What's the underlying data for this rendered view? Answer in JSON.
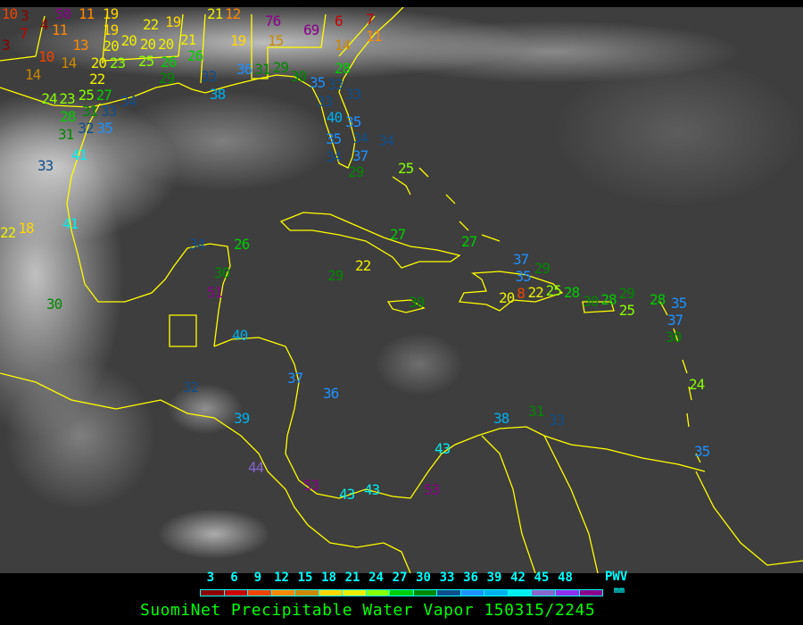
{
  "title": "SuomiNet Precipitable Water Vapor 150315/2245",
  "legend": {
    "unit": "PWV",
    "unit_sub": "mm",
    "ticks": [
      "3",
      "6",
      "9",
      "12",
      "15",
      "18",
      "21",
      "24",
      "27",
      "30",
      "33",
      "36",
      "39",
      "42",
      "45",
      "48"
    ],
    "colors": [
      "#8b0000",
      "#cc0000",
      "#ee4400",
      "#ff8800",
      "#cc8800",
      "#ffd700",
      "#eeee00",
      "#88ff00",
      "#00cc00",
      "#008800",
      "#104e8b",
      "#1e90ff",
      "#00b0ee",
      "#00eeee",
      "#8866cc",
      "#9030ee",
      "#8b008b"
    ],
    "label_color": "#00ffff",
    "title_color": "#00ff00"
  },
  "map": {
    "coastline_color": "#ffff00",
    "stations": [
      "10",
      "3",
      "50",
      "11",
      "19",
      "4",
      "7",
      "11",
      "3",
      "13",
      "19",
      "20",
      "20",
      "22",
      "19",
      "21",
      "12",
      "76",
      "6",
      "69",
      "7",
      "11",
      "10",
      "14",
      "14",
      "20",
      "23",
      "25",
      "26",
      "20",
      "20",
      "21",
      "26",
      "19",
      "15",
      "14",
      "22",
      "27",
      "29",
      "33",
      "36",
      "31",
      "29",
      "30",
      "28",
      "35",
      "33",
      "33",
      "33",
      "38",
      "34",
      "33",
      "24",
      "23",
      "25",
      "28",
      "31",
      "32",
      "35",
      "31",
      "41",
      "33",
      "40",
      "35",
      "34",
      "34",
      "35",
      "37",
      "34",
      "29",
      "25",
      "22",
      "18",
      "41",
      "30",
      "34",
      "26",
      "30",
      "51",
      "40",
      "32",
      "37",
      "36",
      "39",
      "44",
      "53",
      "43",
      "43",
      "43",
      "53",
      "29",
      "22",
      "30",
      "27",
      "27",
      "37",
      "29",
      "35",
      "8",
      "20",
      "22",
      "25",
      "28",
      "30",
      "28",
      "29",
      "25",
      "28",
      "35",
      "37",
      "30",
      "24",
      "38",
      "31",
      "33",
      "35"
    ]
  }
}
